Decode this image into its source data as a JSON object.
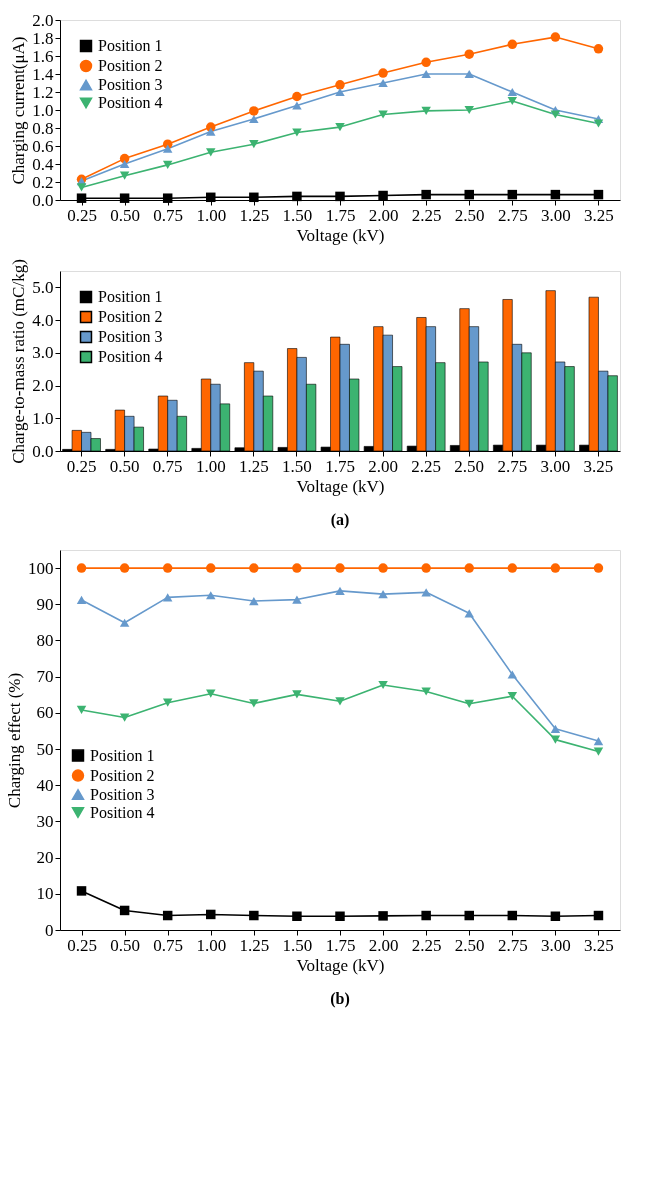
{
  "chart_data": [
    {
      "type": "line",
      "xlabel": "Voltage (kV)",
      "ylabel": "Charging current(μA)",
      "categories": [
        "0.25",
        "0.50",
        "0.75",
        "1.00",
        "1.25",
        "1.50",
        "1.75",
        "2.00",
        "2.25",
        "2.50",
        "2.75",
        "3.00",
        "3.25"
      ],
      "ylim": [
        0,
        2.0
      ],
      "yticks": [
        {
          "value": 0,
          "label": "0.0"
        },
        {
          "value": 0.2,
          "label": "0.2"
        },
        {
          "value": 0.4,
          "label": "0.4"
        },
        {
          "value": 0.6,
          "label": "0.6"
        },
        {
          "value": 0.8,
          "label": "0.8"
        },
        {
          "value": 1.0,
          "label": "1.0"
        },
        {
          "value": 1.2,
          "label": "1.2"
        },
        {
          "value": 1.4,
          "label": "1.4"
        },
        {
          "value": 1.6,
          "label": "1.6"
        },
        {
          "value": 1.8,
          "label": "1.8"
        },
        {
          "value": 2.0,
          "label": "2.0"
        }
      ],
      "legend": "top left",
      "grid": false,
      "line_style": "solid",
      "series": [
        {
          "name": "Position 1",
          "color": "#000000",
          "marker": "square",
          "values": [
            0.02,
            0.02,
            0.02,
            0.03,
            0.03,
            0.04,
            0.04,
            0.05,
            0.06,
            0.06,
            0.06,
            0.06,
            0.06
          ]
        },
        {
          "name": "Position 2",
          "color": "#ff6600",
          "marker": "circle",
          "values": [
            0.23,
            0.46,
            0.62,
            0.81,
            0.99,
            1.15,
            1.28,
            1.41,
            1.53,
            1.62,
            1.73,
            1.81,
            1.68
          ]
        },
        {
          "name": "Position 3",
          "color": "#6699cc",
          "marker": "triangle",
          "values": [
            0.21,
            0.4,
            0.57,
            0.76,
            0.9,
            1.05,
            1.2,
            1.3,
            1.4,
            1.4,
            1.2,
            1.0,
            0.9
          ]
        },
        {
          "name": "Position 4",
          "color": "#3cb371",
          "marker": "triangle-down",
          "values": [
            0.14,
            0.27,
            0.39,
            0.53,
            0.62,
            0.75,
            0.81,
            0.95,
            0.99,
            1.0,
            1.1,
            0.95,
            0.85
          ]
        }
      ]
    },
    {
      "type": "bar",
      "xlabel": "Voltage (kV)",
      "ylabel": "Charge-to-mass ratio (mC/kg)",
      "categories": [
        "0.25",
        "0.50",
        "0.75",
        "1.00",
        "1.25",
        "1.50",
        "1.75",
        "2.00",
        "2.25",
        "2.50",
        "2.75",
        "3.00",
        "3.25"
      ],
      "ylim": [
        0,
        5.5
      ],
      "yticks": [
        {
          "value": 0,
          "label": "0.0"
        },
        {
          "value": 1,
          "label": "1.0"
        },
        {
          "value": 2,
          "label": "2.0"
        },
        {
          "value": 3,
          "label": "3.0"
        },
        {
          "value": 4,
          "label": "4.0"
        },
        {
          "value": 5,
          "label": "5.0"
        }
      ],
      "legend": "top left",
      "grid": false,
      "annotations": [
        "(a)"
      ],
      "series": [
        {
          "name": "Position 1",
          "color": "#000000",
          "values": [
            0.05,
            0.05,
            0.06,
            0.08,
            0.1,
            0.11,
            0.12,
            0.14,
            0.15,
            0.17,
            0.18,
            0.18,
            0.18
          ]
        },
        {
          "name": "Position 2",
          "color": "#ff6600",
          "values": [
            0.63,
            1.25,
            1.68,
            2.2,
            2.7,
            3.13,
            3.48,
            3.8,
            4.08,
            4.35,
            4.63,
            4.9,
            4.7
          ]
        },
        {
          "name": "Position 3",
          "color": "#6699cc",
          "values": [
            0.57,
            1.06,
            1.55,
            2.04,
            2.44,
            2.86,
            3.26,
            3.54,
            3.8,
            3.8,
            3.26,
            2.72,
            2.44
          ]
        },
        {
          "name": "Position 4",
          "color": "#3cb371",
          "values": [
            0.38,
            0.73,
            1.06,
            1.44,
            1.68,
            2.04,
            2.2,
            2.58,
            2.7,
            2.72,
            3.0,
            2.58,
            2.3
          ]
        }
      ]
    },
    {
      "type": "line",
      "xlabel": "Voltage (kV)",
      "ylabel": "Charging effect (%)",
      "categories": [
        "0.25",
        "0.50",
        "0.75",
        "1.00",
        "1.25",
        "1.50",
        "1.75",
        "2.00",
        "2.25",
        "2.50",
        "2.75",
        "3.00",
        "3.25"
      ],
      "ylim": [
        0,
        105
      ],
      "yticks": [
        0,
        10,
        20,
        30,
        40,
        50,
        60,
        70,
        80,
        90,
        100
      ],
      "legend": "left",
      "grid": false,
      "line_style": "solid",
      "annotations": [
        "(b)"
      ],
      "series": [
        {
          "name": "Position 1",
          "color": "#000000",
          "marker": "square",
          "values": [
            10.8,
            5.4,
            4.0,
            4.3,
            4.0,
            3.8,
            3.8,
            3.9,
            4.0,
            4.0,
            4.0,
            3.8,
            4.0
          ]
        },
        {
          "name": "Position 2",
          "color": "#ff6600",
          "marker": "circle",
          "values": [
            100,
            100,
            100,
            100,
            100,
            100,
            100,
            100,
            100,
            100,
            100,
            100,
            100
          ]
        },
        {
          "name": "Position 3",
          "color": "#6699cc",
          "marker": "triangle",
          "values": [
            91.2,
            84.9,
            91.9,
            92.5,
            90.9,
            91.3,
            93.7,
            92.8,
            93.3,
            87.5,
            70.6,
            55.6,
            52.2
          ]
        },
        {
          "name": "Position 4",
          "color": "#3cb371",
          "marker": "triangle-down",
          "values": [
            60.8,
            58.7,
            62.8,
            65.3,
            62.6,
            65.1,
            63.2,
            67.7,
            65.9,
            62.5,
            64.6,
            52.6,
            49.3
          ]
        }
      ]
    }
  ]
}
